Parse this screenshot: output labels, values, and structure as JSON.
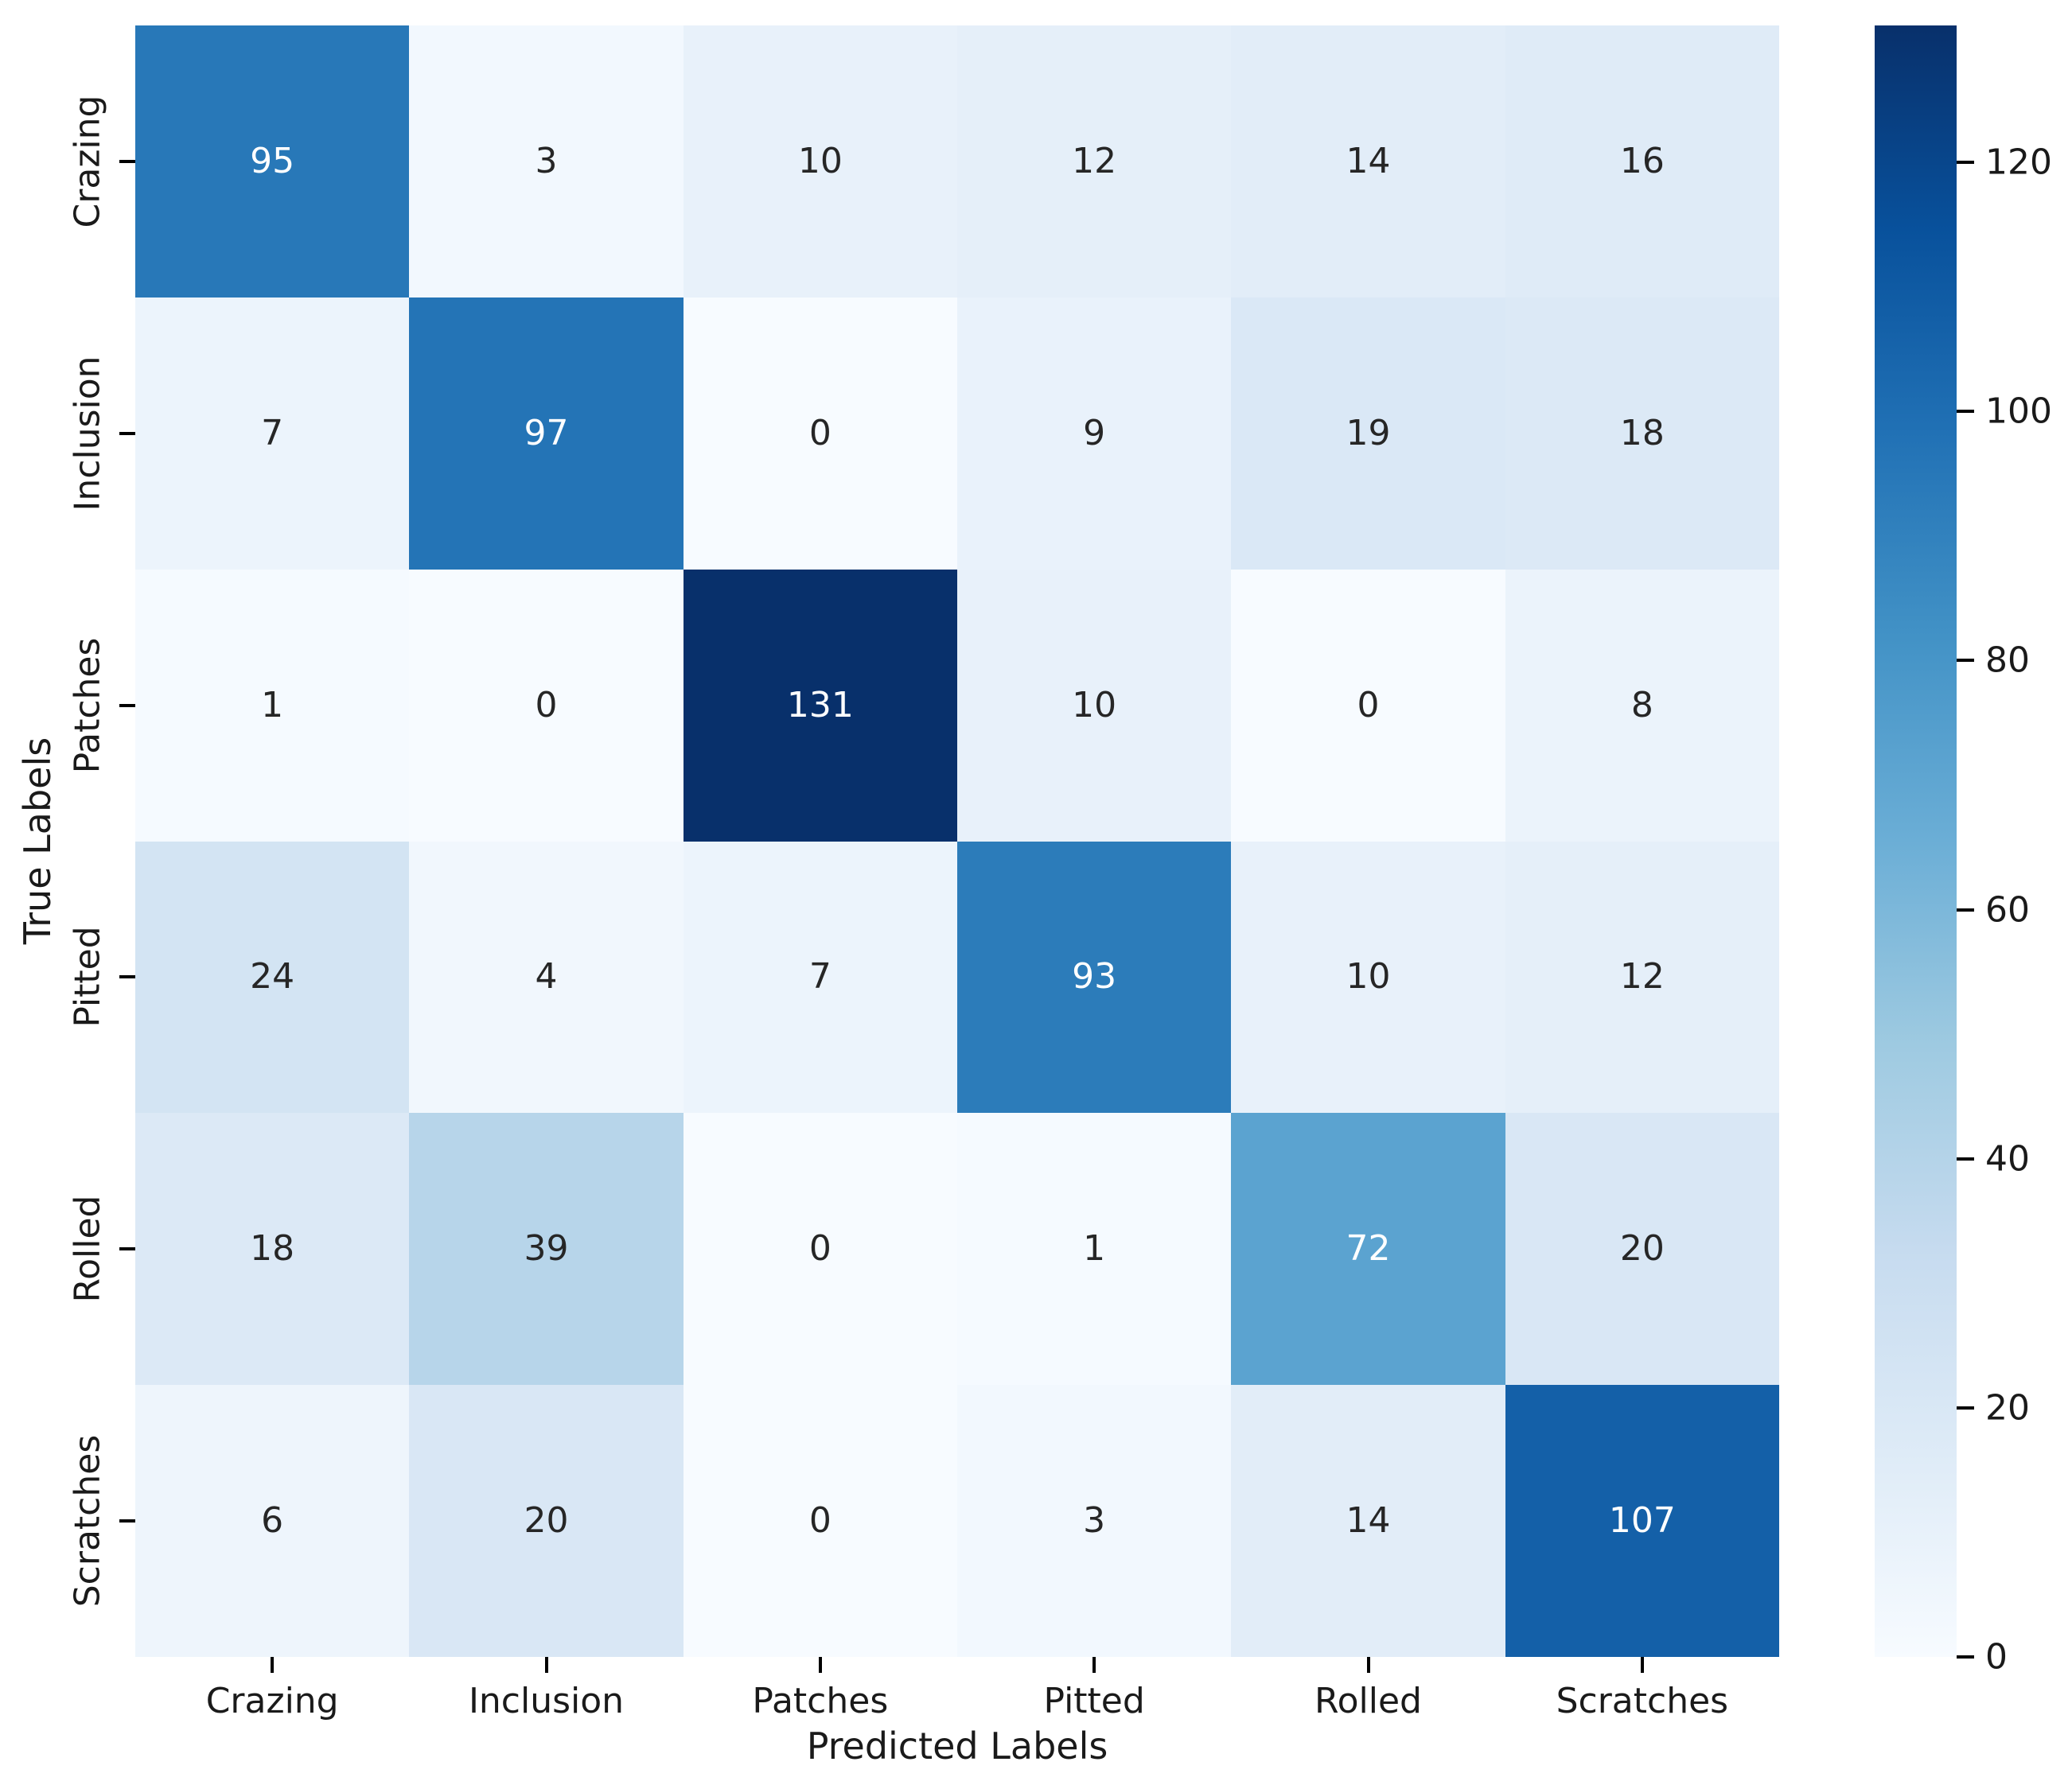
{
  "chart_data": {
    "type": "heatmap",
    "title": "",
    "xlabel": "Predicted Labels",
    "ylabel": "True Labels",
    "x_categories": [
      "Crazing",
      "Inclusion",
      "Patches",
      "Pitted",
      "Rolled",
      "Scratches"
    ],
    "y_categories": [
      "Crazing",
      "Inclusion",
      "Patches",
      "Pitted",
      "Rolled",
      "Scratches"
    ],
    "matrix": [
      [
        95,
        3,
        10,
        12,
        14,
        16
      ],
      [
        7,
        97,
        0,
        9,
        19,
        18
      ],
      [
        1,
        0,
        131,
        10,
        0,
        8
      ],
      [
        24,
        4,
        7,
        93,
        10,
        12
      ],
      [
        18,
        39,
        0,
        1,
        72,
        20
      ],
      [
        6,
        20,
        0,
        3,
        14,
        107
      ]
    ],
    "vmin": 0,
    "vmax": 131,
    "colormap": "Blues",
    "colorbar_ticks": [
      0,
      20,
      40,
      60,
      80,
      100,
      120
    ],
    "legend_position": "right",
    "grid": false,
    "annotations_on": true
  },
  "colors": {
    "blues_stops": [
      "#f7fbff",
      "#deebf7",
      "#c6dbef",
      "#9ecae1",
      "#6baed6",
      "#4292c6",
      "#2171b5",
      "#08519c",
      "#08306b"
    ],
    "annotation_dark": "#262626",
    "annotation_light": "#ffffff",
    "axis_text": "#1a1a1a",
    "background": "#ffffff"
  }
}
